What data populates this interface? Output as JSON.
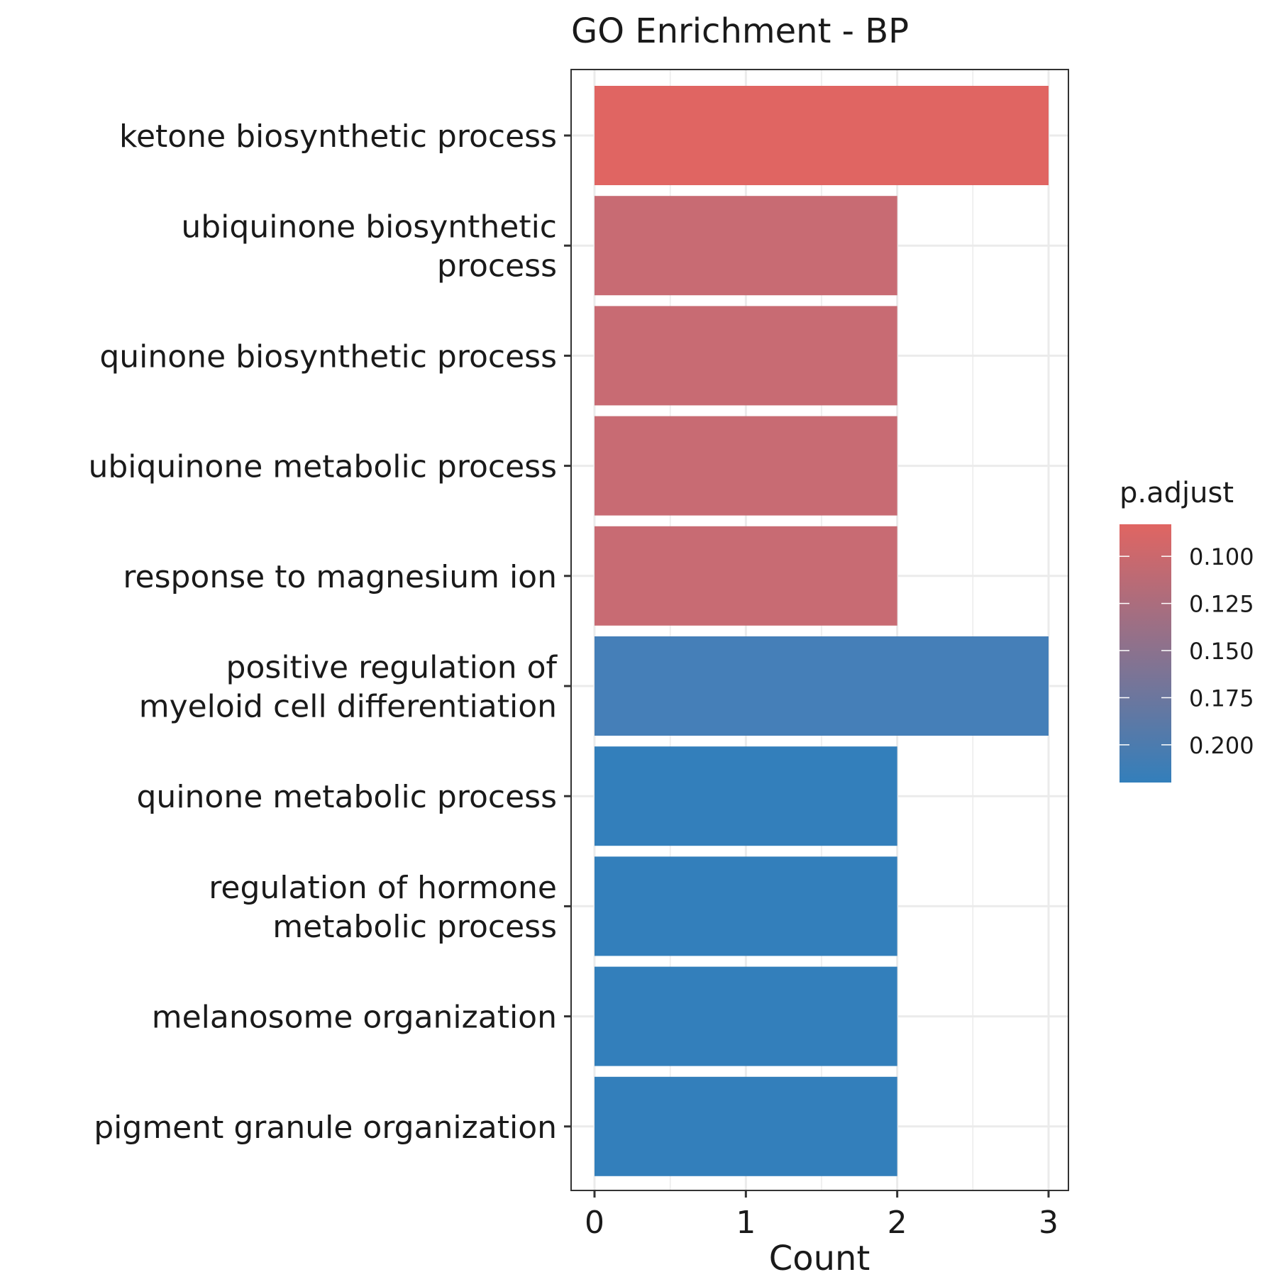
{
  "chart_data": {
    "type": "bar",
    "orientation": "horizontal",
    "title": "GO Enrichment - BP",
    "xlabel": "Count",
    "ylabel": "",
    "xlim": [
      0,
      3.15
    ],
    "xticks": [
      "0",
      "1",
      "2",
      "3"
    ],
    "grid": true,
    "categories": [
      [
        "ketone biosynthetic process"
      ],
      [
        "ubiquinone biosynthetic",
        "process"
      ],
      [
        "quinone biosynthetic process"
      ],
      [
        "ubiquinone metabolic process"
      ],
      [
        "response to magnesium ion"
      ],
      [
        "positive regulation of",
        "myeloid cell differentiation"
      ],
      [
        "quinone metabolic process"
      ],
      [
        "regulation of hormone",
        "metabolic process"
      ],
      [
        "melanosome organization"
      ],
      [
        "pigment granule organization"
      ]
    ],
    "values": [
      3,
      2,
      2,
      2,
      2,
      3,
      2,
      2,
      2,
      2
    ],
    "p_adjust": [
      0.083,
      0.112,
      0.112,
      0.112,
      0.112,
      0.205,
      0.22,
      0.22,
      0.22,
      0.22
    ],
    "bar_colors": [
      "#e06562",
      "#c86b73",
      "#c86b73",
      "#c86b73",
      "#c86b73",
      "#457fb8",
      "#337fbb",
      "#337fbb",
      "#337fbb",
      "#337fbb"
    ],
    "legend": {
      "title": "p.adjust",
      "position": "right",
      "ticks": [
        "0.100",
        "0.125",
        "0.150",
        "0.175",
        "0.200"
      ],
      "tick_values": [
        0.1,
        0.125,
        0.15,
        0.175,
        0.2
      ],
      "range": [
        0.083,
        0.22
      ],
      "color_low": "#e06562",
      "color_high": "#337fbb"
    }
  }
}
